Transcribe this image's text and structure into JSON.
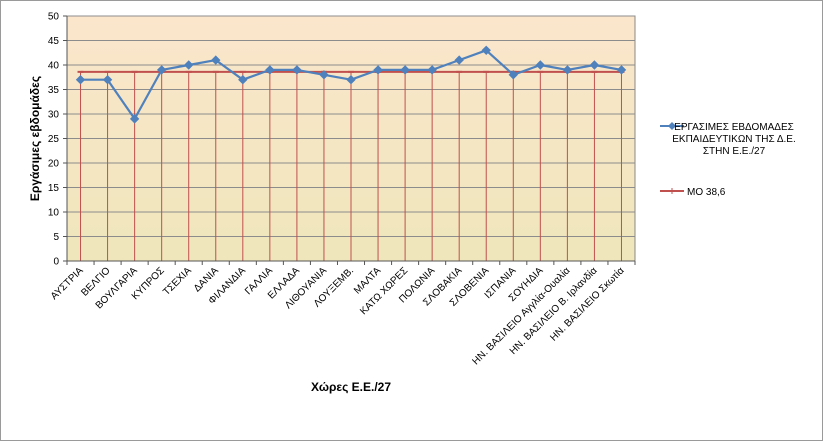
{
  "colors": {
    "series1": "#4f81bd",
    "series2": "#c0504d",
    "plot_top": "#fbe6cc",
    "plot_bottom": "#efe6bb",
    "grid": "#8c8c8c"
  },
  "chart_data": {
    "type": "line",
    "xlabel": "Χώρες Ε.Ε./27",
    "ylabel": "Εργάσιμες εβδομάδες",
    "ylim": [
      0,
      50
    ],
    "yticks": [
      0,
      5,
      10,
      15,
      20,
      25,
      30,
      35,
      40,
      45,
      50
    ],
    "grid": true,
    "legend_position": "right",
    "categories": [
      "ΑΥΣΤΡΙΑ",
      "ΒΕΛΓΙΟ",
      "ΒΟΥΛΓΑΡΙΑ",
      "ΚΥΠΡΟΣ",
      "ΤΣΕΧΙΑ",
      "ΔΑΝΙΑ",
      "ΦΙΛΑΝΔΙΑ",
      "ΓΑΛΛΙΑ",
      "ΕΛΛΑΔΑ",
      "ΛΙΘΟΥΑΝΙΑ",
      "ΛΟΥΞΕΜΒ.",
      "ΜΑΛΤΑ",
      "ΚΑΤΩ ΧΩΡΕΣ",
      "ΠΟΛΩΝΙΑ",
      "ΣΛΟΒΑΚΙΑ",
      "ΣΛΟΒΕΝΙΑ",
      "ΙΣΠΑΝΙΑ",
      "ΣΟΥΗΔΙΑ",
      "ΗΝ. ΒΑΣΙΛΕΙΟ Αγγλία-Ουαλία",
      "ΗΝ. ΒΑΣΙΛΕΙΟ Β. Ιρλανδία",
      "ΗΝ. ΒΑΣΙΛΕΙΟ Σκωτία"
    ],
    "series": [
      {
        "name": "ΕΡΓΑΣΙΜΕΣ ΕΒΔΟΜΑΔΕΣ ΕΚΠΑΙΔΕΥΤΙΚΩΝ ΤΗΣ Δ.Ε. ΣΤΗΝ Ε.Ε./27",
        "legend_lines": [
          "ΕΡΓΑΣΙΜΕΣ ΕΒΔΟΜΑΔΕΣ",
          "ΕΚΠΑΙΔΕΥΤΙΚΩΝ ΤΗΣ Δ.Ε.",
          "ΣΤΗΝ Ε.Ε./27"
        ],
        "marker": "diamond",
        "values": [
          37,
          37,
          29,
          39,
          40,
          41,
          37,
          39,
          39,
          38,
          37,
          39,
          39,
          39,
          41,
          43,
          38,
          40,
          39,
          40,
          39
        ]
      },
      {
        "name": "ΜΟ 38,6",
        "legend_lines": [
          "ΜΟ 38,6"
        ],
        "marker": "dash",
        "drop_lines": true,
        "values": [
          38.6,
          38.6,
          38.6,
          38.6,
          38.6,
          38.6,
          38.6,
          38.6,
          38.6,
          38.6,
          38.6,
          38.6,
          38.6,
          38.6,
          38.6,
          38.6,
          38.6,
          38.6,
          38.6,
          38.6,
          38.6
        ]
      }
    ]
  }
}
